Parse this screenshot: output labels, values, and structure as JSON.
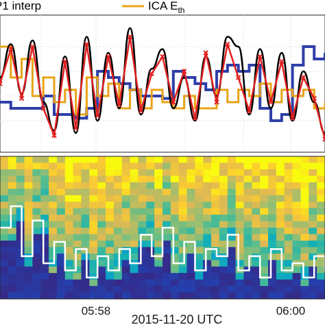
{
  "chart_data": [
    {
      "type": "line",
      "panel": "upper",
      "legend": {
        "placement": "top",
        "entries": [
          {
            "name": "P1 interp",
            "color": "#000000"
          },
          {
            "name": "ICA E",
            "subscript": "th",
            "color": "#e8a317"
          }
        ]
      },
      "grid": true,
      "x": [
        0,
        4,
        8,
        12,
        16,
        20,
        24,
        28,
        32,
        36,
        40,
        44,
        48,
        52,
        56,
        60,
        64,
        68,
        72,
        76,
        80,
        84,
        88,
        92,
        96,
        100,
        104,
        108,
        112,
        116,
        120
      ],
      "series": [
        {
          "name": "P1 interp",
          "color": "#000000",
          "values": [
            0.55,
            0.82,
            0.42,
            0.85,
            0.35,
            0.12,
            0.72,
            0.1,
            0.88,
            0.2,
            0.75,
            0.3,
            0.95,
            0.25,
            0.62,
            0.78,
            0.3,
            0.55,
            0.2,
            0.72,
            0.4,
            0.88,
            0.8,
            0.25,
            0.78,
            0.3,
            0.75,
            0.2,
            0.6,
            0.35,
            0.1
          ]
        },
        {
          "color": "#e02020",
          "marker": "x",
          "values": [
            0.5,
            0.78,
            0.38,
            0.8,
            0.3,
            0.08,
            0.68,
            0.14,
            0.82,
            0.24,
            0.72,
            0.33,
            0.88,
            0.28,
            0.58,
            0.72,
            0.35,
            0.6,
            0.22,
            0.75,
            0.35,
            0.82,
            0.55,
            0.28,
            0.72,
            0.35,
            0.68,
            0.22,
            0.55,
            0.38,
            0.05
          ]
        },
        {
          "color": "#2f3fa8",
          "values": [
            0.35,
            0.3,
            0.3,
            0.3,
            0.4,
            0.25,
            0.25,
            0.22,
            0.3,
            0.6,
            0.55,
            0.5,
            0.45,
            0.4,
            0.4,
            0.38,
            0.6,
            0.55,
            0.5,
            0.45,
            0.6,
            0.65,
            0.6,
            0.65,
            0.3,
            0.2,
            0.25,
            0.65,
            0.8,
            0.7,
            0.75
          ]
        },
        {
          "name": "ICA E_th",
          "color": "#e8a317",
          "values": [
            0.8,
            0.55,
            0.7,
            0.4,
            0.55,
            0.35,
            0.45,
            0.25,
            0.55,
            0.4,
            0.5,
            0.3,
            0.45,
            0.3,
            0.45,
            0.35,
            0.3,
            0.4,
            0.3,
            0.3,
            0.45,
            0.35,
            0.45,
            0.4,
            0.5,
            0.35,
            0.45,
            0.4,
            0.45,
            0.3,
            0.35
          ]
        }
      ],
      "ylim": [
        0,
        1
      ]
    },
    {
      "type": "heatmap",
      "panel": "lower",
      "colormap": "parula",
      "xlabel": "2015-11-20 UTC",
      "x_tick_labels": [
        "05:58",
        "06:00"
      ],
      "line": {
        "color": "#ffffff",
        "values": [
          0.5,
          0.65,
          0.3,
          0.55,
          0.25,
          0.4,
          0.2,
          0.35,
          0.15,
          0.3,
          0.2,
          0.35,
          0.25,
          0.45,
          0.3,
          0.5,
          0.25,
          0.4,
          0.2,
          0.35,
          0.3,
          0.45,
          0.2,
          0.3,
          0.15,
          0.35,
          0.2,
          0.25,
          0.15,
          0.3,
          0.2
        ]
      }
    }
  ]
}
